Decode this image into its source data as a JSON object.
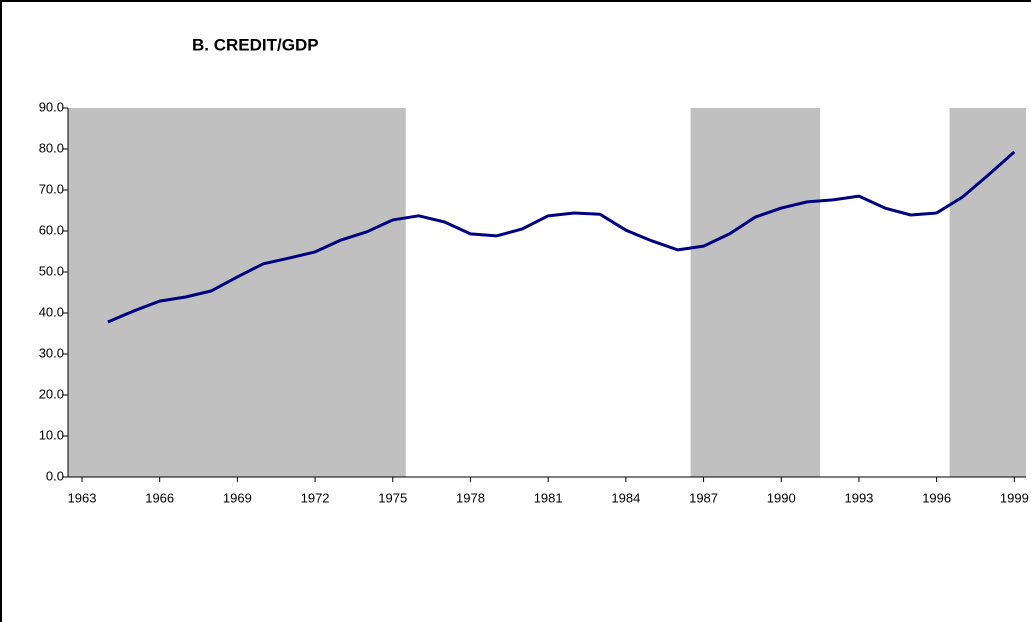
{
  "chart_data": {
    "type": "line",
    "title": "B. CREDIT/GDP",
    "x": [
      1964,
      1965,
      1966,
      1967,
      1968,
      1969,
      1970,
      1971,
      1972,
      1973,
      1974,
      1975,
      1976,
      1977,
      1978,
      1979,
      1980,
      1981,
      1982,
      1983,
      1984,
      1985,
      1986,
      1987,
      1988,
      1989,
      1990,
      1991,
      1992,
      1993,
      1994,
      1995,
      1996,
      1997,
      1998,
      1999
    ],
    "series": [
      {
        "color": "#000080",
        "values": [
          37.8,
          40.5,
          42.9,
          43.9,
          45.4,
          48.8,
          52.0,
          53.4,
          54.9,
          57.8,
          59.8,
          62.7,
          63.7,
          62.2,
          59.3,
          58.8,
          60.5,
          63.7,
          64.4,
          64.1,
          60.2,
          57.6,
          55.4,
          56.3,
          59.3,
          63.4,
          65.6,
          67.1,
          67.6,
          68.5,
          65.6,
          63.9,
          64.4,
          68.3,
          73.7,
          79.3
        ]
      }
    ],
    "shaded_periods": [
      [
        1962.46,
        1975.5
      ],
      [
        1986.5,
        1991.5
      ],
      [
        1996.5,
        1999.45
      ]
    ],
    "shade_color": "#c0c0c0",
    "xlim": [
      1962.46,
      1999.45
    ],
    "xticks": [
      1963,
      1966,
      1969,
      1972,
      1975,
      1978,
      1981,
      1984,
      1987,
      1990,
      1993,
      1996,
      1999
    ],
    "ylim": [
      0,
      90
    ],
    "yticks": [
      {
        "value": 0,
        "label": "0.0"
      },
      {
        "value": 10,
        "label": "10.0"
      },
      {
        "value": 20,
        "label": "20.0"
      },
      {
        "value": 30,
        "label": "30.0"
      },
      {
        "value": 40,
        "label": "40.0"
      },
      {
        "value": 50,
        "label": "50.0"
      },
      {
        "value": 60,
        "label": "60.0"
      },
      {
        "value": 70,
        "label": "70.0"
      },
      {
        "value": 80,
        "label": "80.0"
      },
      {
        "value": 90,
        "label": "90.0"
      }
    ]
  }
}
